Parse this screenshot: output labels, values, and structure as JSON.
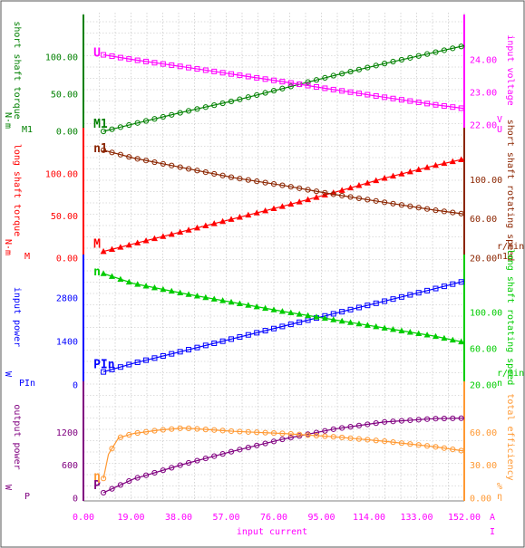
{
  "chart_data": {
    "type": "line",
    "x_axis": {
      "label": "input current",
      "unit": "A",
      "unit_symbol": "I",
      "range": [
        0,
        152
      ],
      "ticks": [
        "0.00",
        "19.00",
        "38.00",
        "57.00",
        "76.00",
        "95.00",
        "114.00",
        "133.00",
        "152.00"
      ],
      "tick_values": [
        0,
        19,
        38,
        57,
        76,
        95,
        114,
        133,
        152
      ]
    },
    "grid": true,
    "panels": [
      {
        "id": "panel1",
        "left_axis": {
          "label": "short shaft torque",
          "unit": "N·m",
          "symbol": "M1",
          "color": "#008000",
          "range": [
            0,
            140
          ],
          "ticks": [
            {
              "v": 0,
              "t": "0.00"
            },
            {
              "v": 50,
              "t": "50.00"
            },
            {
              "v": 100,
              "t": "100.00"
            }
          ]
        },
        "right_axis": {
          "label": "input voltage",
          "unit": "V",
          "symbol": "U",
          "color": "#ff00ff",
          "range": [
            21.8,
            25.0
          ],
          "ticks": [
            {
              "v": 22,
              "t": "22.00"
            },
            {
              "v": 23,
              "t": "23.00"
            },
            {
              "v": 24,
              "t": "24.00"
            }
          ]
        },
        "series": [
          {
            "symbol": "M1",
            "color": "#008000",
            "marker": "circle",
            "axis": "left",
            "x": [
              8,
              20,
              40,
              60,
              80,
              100,
              120,
              140,
              152
            ],
            "y": [
              0,
              10,
              26,
              41,
              58,
              75,
              91,
              106,
              115
            ]
          },
          {
            "symbol": "U",
            "color": "#ff00ff",
            "marker": "square",
            "axis": "right",
            "x": [
              8,
              20,
              40,
              60,
              80,
              100,
              120,
              140,
              152
            ],
            "y": [
              24.15,
              24.0,
              23.78,
              23.55,
              23.32,
              23.08,
              22.85,
              22.62,
              22.5
            ]
          }
        ]
      },
      {
        "id": "panel2",
        "left_axis": {
          "label": "long shaft torque",
          "unit": "N·m",
          "symbol": "M",
          "color": "#ff0000",
          "range": [
            0,
            140
          ],
          "ticks": [
            {
              "v": 0,
              "t": "0.00"
            },
            {
              "v": 50,
              "t": "50.00"
            },
            {
              "v": 100,
              "t": "100.00"
            }
          ]
        },
        "right_axis": {
          "label": "short shaft rotating speed",
          "unit": "r/min",
          "symbol": "n1",
          "color": "#8b2500",
          "range": [
            20,
            140
          ],
          "ticks": [
            {
              "v": 20,
              "t": "20.00"
            },
            {
              "v": 60,
              "t": "60.00"
            },
            {
              "v": 100,
              "t": "100.00"
            }
          ]
        },
        "series": [
          {
            "symbol": "M",
            "color": "#ff0000",
            "marker": "triangle",
            "axis": "left",
            "x": [
              8,
              20,
              40,
              60,
              80,
              100,
              120,
              140,
              152
            ],
            "y": [
              8,
              17,
              32,
              47,
              62,
              78,
              95,
              110,
              118
            ]
          },
          {
            "symbol": "n1",
            "color": "#8b2500",
            "marker": "circle",
            "axis": "right",
            "x": [
              8,
              20,
              40,
              60,
              80,
              100,
              120,
              140,
              152
            ],
            "y": [
              130,
              122,
              112,
              102,
              94,
              85,
              77,
              69,
              65
            ]
          }
        ]
      },
      {
        "id": "panel3",
        "left_axis": {
          "label": "input power",
          "unit": "W",
          "symbol": "PIn",
          "color": "#0000ff",
          "range": [
            0,
            3800
          ],
          "ticks": [
            {
              "v": 0,
              "t": "0"
            },
            {
              "v": 1400,
              "t": "1400"
            },
            {
              "v": 2800,
              "t": "2800"
            }
          ]
        },
        "right_axis": {
          "label": "long shaft rotating speed",
          "unit": "r/min",
          "symbol": "n",
          "color": "#00cc00",
          "range": [
            20,
            150
          ],
          "ticks": [
            {
              "v": 20,
              "t": "20.00"
            },
            {
              "v": 60,
              "t": "60.00"
            },
            {
              "v": 100,
              "t": "100.00"
            }
          ]
        },
        "series": [
          {
            "symbol": "PIn",
            "color": "#0000ff",
            "marker": "square",
            "axis": "left",
            "x": [
              8,
              20,
              40,
              60,
              80,
              100,
              120,
              140,
              152
            ],
            "y": [
              420,
              700,
              1100,
              1500,
              1900,
              2300,
              2700,
              3100,
              3350
            ]
          },
          {
            "symbol": "n",
            "color": "#00cc00",
            "marker": "triangle",
            "axis": "right",
            "x": [
              8,
              20,
              40,
              60,
              80,
              100,
              120,
              140,
              152
            ],
            "y": [
              143,
              132,
              121,
              111,
              101,
              92,
              83,
              74,
              67
            ]
          }
        ]
      },
      {
        "id": "panel4",
        "left_axis": {
          "label": "output power",
          "unit": "W",
          "symbol": "P",
          "color": "#800080",
          "range": [
            0,
            1900
          ],
          "ticks": [
            {
              "v": 0,
              "t": "0"
            },
            {
              "v": 600,
              "t": "600"
            },
            {
              "v": 1200,
              "t": "1200"
            }
          ]
        },
        "right_axis": {
          "label": "total efficiency",
          "unit": "%",
          "symbol": "η",
          "color": "#ff9933",
          "range": [
            0,
            95
          ],
          "ticks": [
            {
              "v": 0,
              "t": "0.00"
            },
            {
              "v": 30,
              "t": "30.00"
            },
            {
              "v": 60,
              "t": "60.00"
            }
          ]
        },
        "series": [
          {
            "symbol": "P",
            "color": "#800080",
            "marker": "circle",
            "axis": "left",
            "x": [
              8,
              20,
              40,
              60,
              80,
              100,
              120,
              140,
              152
            ],
            "y": [
              100,
              350,
              620,
              860,
              1080,
              1260,
              1390,
              1450,
              1460
            ]
          },
          {
            "symbol": "η",
            "color": "#ff9933",
            "marker": "circle",
            "axis": "right",
            "x": [
              8,
              10,
              14,
              20,
              30,
              40,
              60,
              80,
              100,
              120,
              140,
              152
            ],
            "y": [
              18,
              40,
              55,
              59,
              62,
              64,
              61,
              59,
              56,
              52,
              47,
              43
            ]
          }
        ]
      }
    ]
  }
}
